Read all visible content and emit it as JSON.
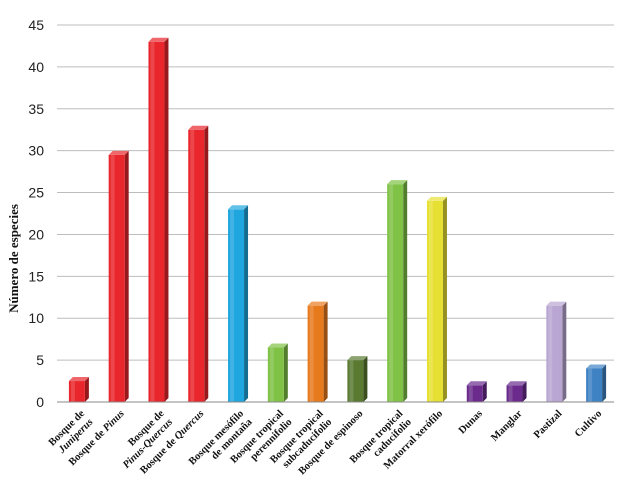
{
  "chart_data": {
    "type": "bar",
    "ylabel": "Número de especies",
    "xlabel": "",
    "ylim": [
      0,
      45
    ],
    "yticks": [
      0,
      5,
      10,
      15,
      20,
      25,
      30,
      35,
      40,
      45
    ],
    "grid": true,
    "categories": [
      {
        "lines": [
          [
            {
              "t": "Bosque de",
              "i": false
            }
          ],
          [
            {
              "t": "Juniperus",
              "i": true
            }
          ]
        ]
      },
      {
        "lines": [
          [
            {
              "t": "Bosque de ",
              "i": false
            },
            {
              "t": "Pinus",
              "i": true
            }
          ]
        ]
      },
      {
        "lines": [
          [
            {
              "t": "Bosque de",
              "i": false
            }
          ],
          [
            {
              "t": "Pinus-Quercus",
              "i": true
            }
          ]
        ]
      },
      {
        "lines": [
          [
            {
              "t": "Bosque de ",
              "i": false
            },
            {
              "t": "Quercus",
              "i": true
            }
          ]
        ]
      },
      {
        "lines": [
          [
            {
              "t": "Bosque mesófilo",
              "i": false
            }
          ],
          [
            {
              "t": "de montaña",
              "i": false
            }
          ]
        ]
      },
      {
        "lines": [
          [
            {
              "t": "Bosque tropical",
              "i": false
            }
          ],
          [
            {
              "t": "perennifolio",
              "i": false
            }
          ]
        ]
      },
      {
        "lines": [
          [
            {
              "t": "Bosque tropical",
              "i": false
            }
          ],
          [
            {
              "t": "subcaducifolio",
              "i": false
            }
          ]
        ]
      },
      {
        "lines": [
          [
            {
              "t": "Bosque de espinoso",
              "i": false
            }
          ]
        ]
      },
      {
        "lines": [
          [
            {
              "t": "Bosque tropical",
              "i": false
            }
          ],
          [
            {
              "t": "caducifolio",
              "i": false
            }
          ]
        ]
      },
      {
        "lines": [
          [
            {
              "t": "Matorral xerófilo",
              "i": false
            }
          ]
        ]
      },
      {
        "lines": [
          [
            {
              "t": "Dunas",
              "i": false
            }
          ]
        ]
      },
      {
        "lines": [
          [
            {
              "t": "Manglar",
              "i": false
            }
          ]
        ]
      },
      {
        "lines": [
          [
            {
              "t": "Pastizal",
              "i": false
            }
          ]
        ]
      },
      {
        "lines": [
          [
            {
              "t": "Cultivo",
              "i": false
            }
          ]
        ]
      }
    ],
    "values": [
      2.5,
      29.5,
      43,
      32.5,
      23,
      6.5,
      11.5,
      5,
      26,
      24,
      2,
      2,
      11.5,
      4
    ],
    "colors": [
      "#e8262b",
      "#e8262b",
      "#e8262b",
      "#e8262b",
      "#1fa6df",
      "#7fc245",
      "#e87a1e",
      "#5a7a32",
      "#7fc245",
      "#e6e033",
      "#6a2b8c",
      "#6a2b8c",
      "#b9a6d3",
      "#3f82c4"
    ]
  }
}
